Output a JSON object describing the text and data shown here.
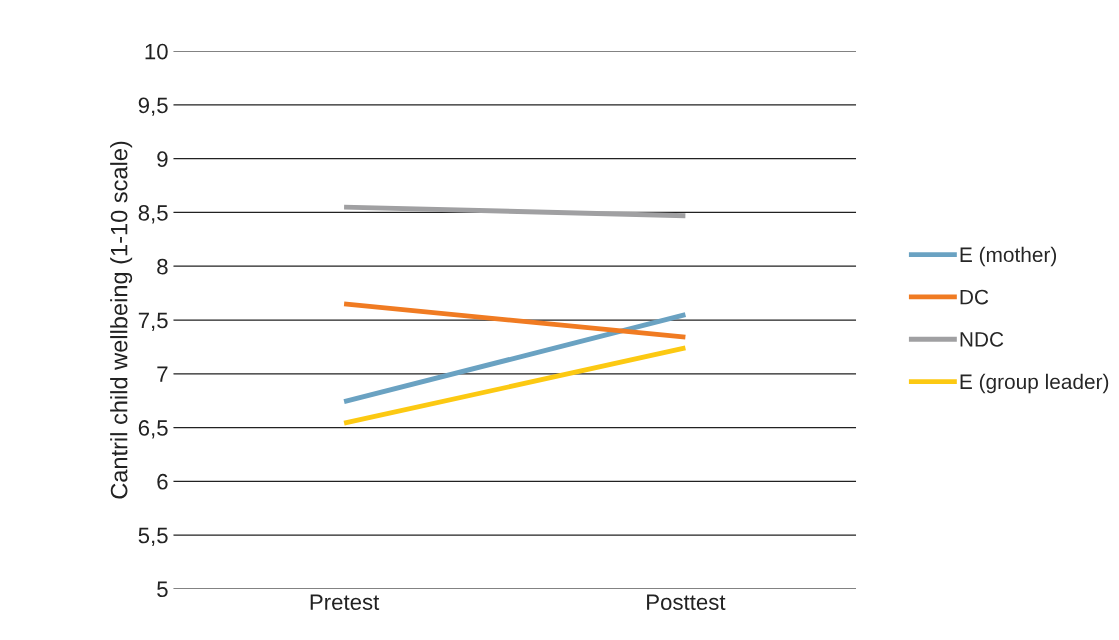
{
  "chart_data": {
    "type": "line",
    "ylabel": "Cantril child wellbeing (1-10 scale)",
    "categories": [
      "Pretest",
      "Posttest"
    ],
    "series": [
      {
        "name": "E (mother)",
        "color": "#6aa2c2",
        "values": [
          6.74,
          7.55
        ]
      },
      {
        "name": "DC",
        "color": "#f07b22",
        "values": [
          7.65,
          7.34
        ]
      },
      {
        "name": "NDC",
        "color": "#a0a0a2",
        "values": [
          8.55,
          8.47
        ]
      },
      {
        "name": "E (group leader)",
        "color": "#fcc912",
        "values": [
          6.54,
          7.24
        ]
      }
    ],
    "ylim": [
      5,
      10
    ],
    "yticks": [
      5,
      {
        "value": 5.5,
        "label": "5,5"
      },
      6,
      {
        "value": 6.5,
        "label": "6,5"
      },
      7,
      {
        "value": 7.5,
        "label": "7,5"
      },
      8,
      {
        "value": 8.5,
        "label": "8,5"
      },
      9,
      {
        "value": 9.5,
        "label": "9,5"
      },
      10
    ],
    "grid": "y",
    "legend": "right",
    "marker": "none",
    "line_style": "solid"
  }
}
